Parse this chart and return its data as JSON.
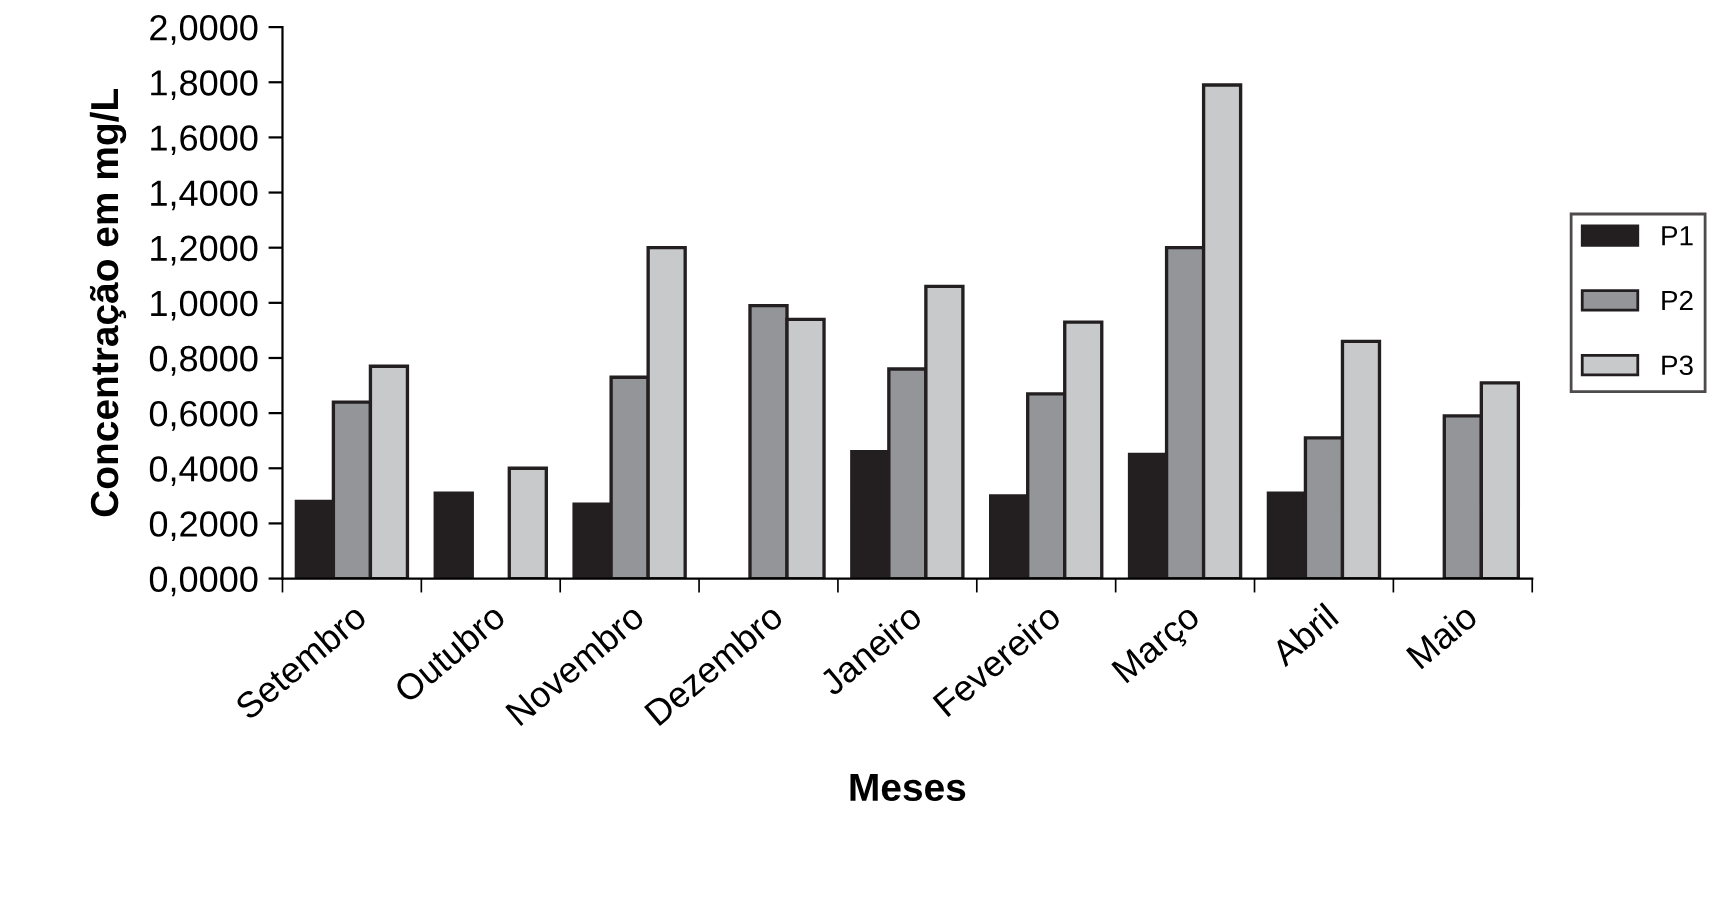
{
  "chart_data": {
    "type": "bar",
    "xlabel": "Meses",
    "ylabel": "Concentração em mg/L",
    "categories": [
      "Setembro",
      "Outubro",
      "Novembro",
      "Dezembro",
      "Janeiro",
      "Fevereiro",
      "Março",
      "Abril",
      "Maio"
    ],
    "series": [
      {
        "name": "P1",
        "color": "#231f20",
        "values": [
          0.28,
          0.31,
          0.27,
          null,
          0.46,
          0.3,
          0.45,
          0.31,
          null
        ]
      },
      {
        "name": "P2",
        "color": "#939598",
        "values": [
          0.64,
          null,
          0.73,
          0.99,
          0.76,
          0.67,
          1.2,
          0.51,
          0.59
        ]
      },
      {
        "name": "P3",
        "color": "#c8c9cb",
        "values": [
          0.77,
          0.4,
          1.2,
          0.94,
          1.06,
          0.93,
          1.79,
          0.86,
          0.71
        ]
      }
    ],
    "ylim": [
      0,
      2
    ],
    "yticks": [
      {
        "value": 0,
        "label": "0,0000"
      },
      {
        "value": 0.2,
        "label": "0,2000"
      },
      {
        "value": 0.4,
        "label": "0,4000"
      },
      {
        "value": 0.6,
        "label": "0,6000"
      },
      {
        "value": 0.8,
        "label": "0,8000"
      },
      {
        "value": 1.0,
        "label": "1,0000"
      },
      {
        "value": 1.2,
        "label": "1,2000"
      },
      {
        "value": 1.4,
        "label": "1,4000"
      },
      {
        "value": 1.6,
        "label": "1,6000"
      },
      {
        "value": 1.8,
        "label": "1,8000"
      },
      {
        "value": 2.0,
        "label": "2,0000"
      }
    ],
    "grid": false,
    "legend": "right"
  }
}
